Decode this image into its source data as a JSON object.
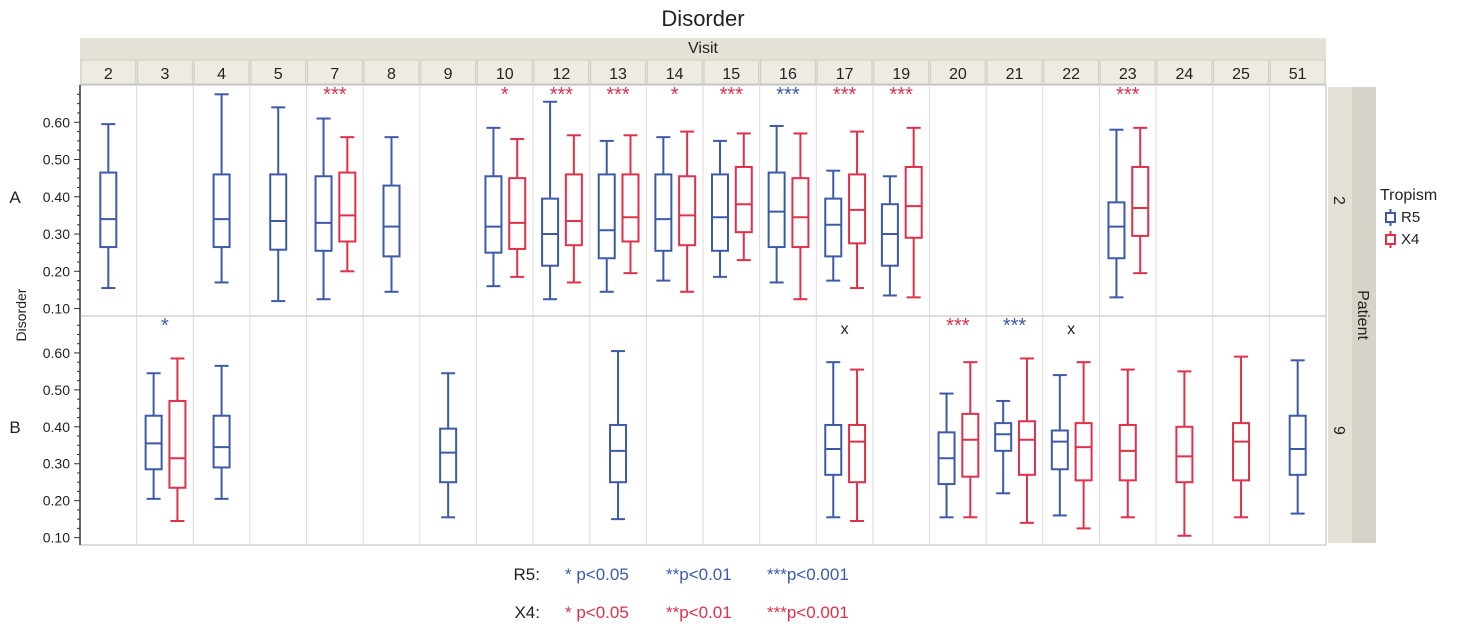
{
  "chart_data": {
    "type": "boxplot",
    "title": "Disorder",
    "column_header": "Visit",
    "row_header": "Patient",
    "ylabel": "Disorder",
    "ylim": [
      0.08,
      0.7
    ],
    "y_ticks": [
      "0.10",
      "0.20",
      "0.30",
      "0.40",
      "0.50",
      "0.60"
    ],
    "visits": [
      "2",
      "3",
      "4",
      "5",
      "7",
      "8",
      "9",
      "10",
      "12",
      "13",
      "14",
      "15",
      "16",
      "17",
      "19",
      "20",
      "21",
      "22",
      "23",
      "24",
      "25",
      "51"
    ],
    "patients": [
      {
        "panel_label": "A",
        "row_label": "2"
      },
      {
        "panel_label": "B",
        "row_label": "9"
      }
    ],
    "legend": {
      "title": "Tropism",
      "items": [
        {
          "name": "R5",
          "color": "#3c5aa8"
        },
        {
          "name": "X4",
          "color": "#e0304a"
        }
      ]
    },
    "series": [
      {
        "name": "R5",
        "color": "#3c5aa8",
        "boxes": [
          {
            "patient": 0,
            "visit": "2",
            "min": 0.155,
            "q1": 0.265,
            "median": 0.34,
            "q3": 0.465,
            "max": 0.595
          },
          {
            "patient": 0,
            "visit": "4",
            "min": 0.17,
            "q1": 0.265,
            "median": 0.34,
            "q3": 0.46,
            "max": 0.675
          },
          {
            "patient": 0,
            "visit": "5",
            "min": 0.12,
            "q1": 0.258,
            "median": 0.335,
            "q3": 0.46,
            "max": 0.64
          },
          {
            "patient": 0,
            "visit": "7",
            "min": 0.125,
            "q1": 0.255,
            "median": 0.33,
            "q3": 0.455,
            "max": 0.61
          },
          {
            "patient": 0,
            "visit": "8",
            "min": 0.145,
            "q1": 0.24,
            "median": 0.32,
            "q3": 0.43,
            "max": 0.56
          },
          {
            "patient": 0,
            "visit": "10",
            "min": 0.16,
            "q1": 0.25,
            "median": 0.32,
            "q3": 0.455,
            "max": 0.585
          },
          {
            "patient": 0,
            "visit": "12",
            "min": 0.125,
            "q1": 0.215,
            "median": 0.3,
            "q3": 0.395,
            "max": 0.655
          },
          {
            "patient": 0,
            "visit": "13",
            "min": 0.145,
            "q1": 0.235,
            "median": 0.31,
            "q3": 0.46,
            "max": 0.55
          },
          {
            "patient": 0,
            "visit": "14",
            "min": 0.175,
            "q1": 0.255,
            "median": 0.34,
            "q3": 0.46,
            "max": 0.56
          },
          {
            "patient": 0,
            "visit": "15",
            "min": 0.185,
            "q1": 0.255,
            "median": 0.345,
            "q3": 0.46,
            "max": 0.55
          },
          {
            "patient": 0,
            "visit": "16",
            "min": 0.17,
            "q1": 0.265,
            "median": 0.36,
            "q3": 0.465,
            "max": 0.59
          },
          {
            "patient": 0,
            "visit": "17",
            "min": 0.175,
            "q1": 0.24,
            "median": 0.325,
            "q3": 0.395,
            "max": 0.47
          },
          {
            "patient": 0,
            "visit": "19",
            "min": 0.135,
            "q1": 0.215,
            "median": 0.3,
            "q3": 0.38,
            "max": 0.455
          },
          {
            "patient": 0,
            "visit": "23",
            "min": 0.13,
            "q1": 0.235,
            "median": 0.32,
            "q3": 0.385,
            "max": 0.58
          },
          {
            "patient": 1,
            "visit": "3",
            "min": 0.205,
            "q1": 0.285,
            "median": 0.355,
            "q3": 0.43,
            "max": 0.545
          },
          {
            "patient": 1,
            "visit": "4",
            "min": 0.205,
            "q1": 0.29,
            "median": 0.345,
            "q3": 0.43,
            "max": 0.565
          },
          {
            "patient": 1,
            "visit": "9",
            "min": 0.155,
            "q1": 0.25,
            "median": 0.33,
            "q3": 0.395,
            "max": 0.545
          },
          {
            "patient": 1,
            "visit": "13",
            "min": 0.15,
            "q1": 0.25,
            "median": 0.335,
            "q3": 0.405,
            "max": 0.605
          },
          {
            "patient": 1,
            "visit": "17",
            "min": 0.155,
            "q1": 0.27,
            "median": 0.34,
            "q3": 0.405,
            "max": 0.575
          },
          {
            "patient": 1,
            "visit": "20",
            "min": 0.155,
            "q1": 0.245,
            "median": 0.315,
            "q3": 0.385,
            "max": 0.49
          },
          {
            "patient": 1,
            "visit": "21",
            "min": 0.22,
            "q1": 0.335,
            "median": 0.38,
            "q3": 0.41,
            "max": 0.47
          },
          {
            "patient": 1,
            "visit": "22",
            "min": 0.16,
            "q1": 0.285,
            "median": 0.36,
            "q3": 0.39,
            "max": 0.54
          },
          {
            "patient": 1,
            "visit": "51",
            "min": 0.165,
            "q1": 0.27,
            "median": 0.34,
            "q3": 0.43,
            "max": 0.58
          }
        ]
      },
      {
        "name": "X4",
        "color": "#e0304a",
        "boxes": [
          {
            "patient": 0,
            "visit": "7",
            "min": 0.2,
            "q1": 0.28,
            "median": 0.35,
            "q3": 0.465,
            "max": 0.56
          },
          {
            "patient": 0,
            "visit": "10",
            "min": 0.185,
            "q1": 0.26,
            "median": 0.33,
            "q3": 0.45,
            "max": 0.555
          },
          {
            "patient": 0,
            "visit": "12",
            "min": 0.17,
            "q1": 0.27,
            "median": 0.335,
            "q3": 0.46,
            "max": 0.565
          },
          {
            "patient": 0,
            "visit": "13",
            "min": 0.195,
            "q1": 0.28,
            "median": 0.345,
            "q3": 0.46,
            "max": 0.565
          },
          {
            "patient": 0,
            "visit": "14",
            "min": 0.145,
            "q1": 0.27,
            "median": 0.35,
            "q3": 0.455,
            "max": 0.575
          },
          {
            "patient": 0,
            "visit": "15",
            "min": 0.23,
            "q1": 0.305,
            "median": 0.38,
            "q3": 0.48,
            "max": 0.57
          },
          {
            "patient": 0,
            "visit": "16",
            "min": 0.125,
            "q1": 0.265,
            "median": 0.345,
            "q3": 0.45,
            "max": 0.57
          },
          {
            "patient": 0,
            "visit": "17",
            "min": 0.155,
            "q1": 0.275,
            "median": 0.365,
            "q3": 0.46,
            "max": 0.575
          },
          {
            "patient": 0,
            "visit": "19",
            "min": 0.13,
            "q1": 0.29,
            "median": 0.375,
            "q3": 0.48,
            "max": 0.585
          },
          {
            "patient": 0,
            "visit": "23",
            "min": 0.195,
            "q1": 0.295,
            "median": 0.37,
            "q3": 0.48,
            "max": 0.585
          },
          {
            "patient": 1,
            "visit": "3",
            "min": 0.145,
            "q1": 0.235,
            "median": 0.315,
            "q3": 0.47,
            "max": 0.585
          },
          {
            "patient": 1,
            "visit": "17",
            "min": 0.145,
            "q1": 0.25,
            "median": 0.36,
            "q3": 0.405,
            "max": 0.555
          },
          {
            "patient": 1,
            "visit": "20",
            "min": 0.155,
            "q1": 0.265,
            "median": 0.365,
            "q3": 0.435,
            "max": 0.575
          },
          {
            "patient": 1,
            "visit": "21",
            "min": 0.14,
            "q1": 0.27,
            "median": 0.365,
            "q3": 0.415,
            "max": 0.585
          },
          {
            "patient": 1,
            "visit": "22",
            "min": 0.125,
            "q1": 0.255,
            "median": 0.345,
            "q3": 0.41,
            "max": 0.575
          },
          {
            "patient": 1,
            "visit": "23",
            "min": 0.155,
            "q1": 0.255,
            "median": 0.335,
            "q3": 0.405,
            "max": 0.555
          },
          {
            "patient": 1,
            "visit": "24",
            "min": 0.105,
            "q1": 0.25,
            "median": 0.32,
            "q3": 0.4,
            "max": 0.55
          },
          {
            "patient": 1,
            "visit": "25",
            "min": 0.155,
            "q1": 0.255,
            "median": 0.36,
            "q3": 0.41,
            "max": 0.59
          }
        ]
      }
    ],
    "annotations": [
      {
        "patient": 0,
        "visit": "7",
        "text": "***",
        "series": "X4"
      },
      {
        "patient": 0,
        "visit": "10",
        "text": "*",
        "series": "X4"
      },
      {
        "patient": 0,
        "visit": "12",
        "text": "***",
        "series": "X4"
      },
      {
        "patient": 0,
        "visit": "13",
        "text": "***",
        "series": "X4"
      },
      {
        "patient": 0,
        "visit": "14",
        "text": "*",
        "series": "X4"
      },
      {
        "patient": 0,
        "visit": "15",
        "text": "***",
        "series": "X4"
      },
      {
        "patient": 0,
        "visit": "16",
        "text": "***",
        "series": "R5"
      },
      {
        "patient": 0,
        "visit": "17",
        "text": "***",
        "series": "X4"
      },
      {
        "patient": 0,
        "visit": "19",
        "text": "***",
        "series": "X4"
      },
      {
        "patient": 0,
        "visit": "23",
        "text": "***",
        "series": "X4"
      },
      {
        "patient": 1,
        "visit": "3",
        "text": "*",
        "series": "R5"
      },
      {
        "patient": 1,
        "visit": "17",
        "text": "x",
        "series": "none"
      },
      {
        "patient": 1,
        "visit": "20",
        "text": "***",
        "series": "X4"
      },
      {
        "patient": 1,
        "visit": "21",
        "text": "***",
        "series": "R5"
      },
      {
        "patient": 1,
        "visit": "22",
        "text": "x",
        "series": "none"
      }
    ],
    "footnotes": [
      {
        "label": "R5:",
        "color": "#3c5aa8",
        "items": [
          "* p<0.05",
          "**p<0.01",
          "***p<0.001"
        ]
      },
      {
        "label": "X4:",
        "color": "#e0304a",
        "items": [
          "* p<0.05",
          "**p<0.01",
          "***p<0.001"
        ]
      }
    ]
  }
}
